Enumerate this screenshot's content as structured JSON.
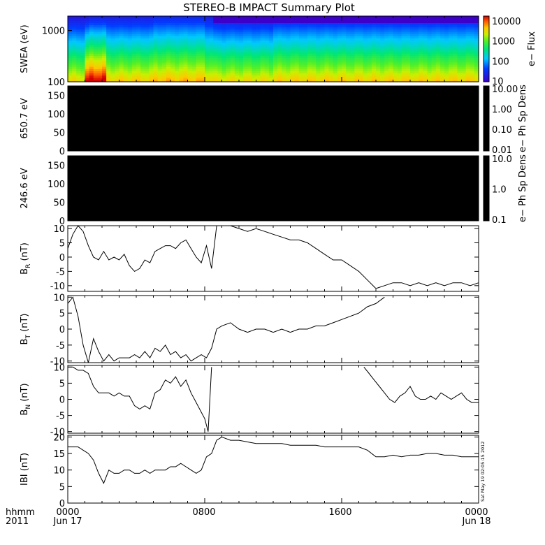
{
  "title": "STEREO-B IMPACT Summary Plot",
  "footer": {
    "row1_label": "hhmm",
    "row2_label": "2011",
    "ticks": [
      {
        "hours": 0,
        "hhmm": "0000",
        "date": "Jun 17"
      },
      {
        "hours": 8,
        "hhmm": "0800",
        "date": ""
      },
      {
        "hours": 16,
        "hhmm": "1600",
        "date": ""
      },
      {
        "hours": 24,
        "hhmm": "0000",
        "date": "Jun 18"
      }
    ]
  },
  "timestamp": "Sat May 19 02:05:15 2012",
  "colors": {
    "line": "#000000",
    "frame": "#000000",
    "black_panel": "#000000"
  },
  "chart_data": [
    {
      "type": "heatmap",
      "ylabel": "SWEA (eV)",
      "yscale": "log",
      "ylim": [
        100,
        1900
      ],
      "yticks": [
        {
          "v": 100,
          "label": "100"
        },
        {
          "v": 1000,
          "label": "1000"
        }
      ],
      "x": [
        0,
        0.5,
        1,
        1.5,
        2,
        2.5,
        3,
        3.5,
        4,
        5,
        6,
        7,
        8,
        8.5,
        9,
        10,
        11,
        12,
        13,
        14,
        15,
        16,
        17,
        18,
        19,
        20,
        21,
        22,
        23,
        24
      ],
      "y_energies": [
        100,
        126,
        159,
        200,
        251,
        316,
        398,
        501,
        631,
        794,
        1000,
        1259,
        1585,
        1900
      ],
      "profile_description": "flux peaks near 100 eV around 01:30-02:15, decreasing with energy",
      "colorbar": {
        "label": "e− Flux",
        "scale": "log",
        "range": [
          10,
          10000
        ],
        "ticks": [
          "10000",
          "1000",
          "100",
          "10"
        ]
      }
    },
    {
      "type": "line",
      "ylabel": "650.7 eV",
      "ylim": [
        0,
        175
      ],
      "yticks": [
        "0",
        "50",
        "100",
        "150"
      ],
      "values": [],
      "panel": "all black (no data)",
      "colorbar": {
        "label": "e− Ph Sp Dens",
        "scale": "log",
        "ticks": [
          "10.00",
          "1.00",
          "0.10",
          "0.01"
        ]
      }
    },
    {
      "type": "line",
      "ylabel": "246.6 eV",
      "ylim": [
        0,
        175
      ],
      "yticks": [
        "0",
        "50",
        "100",
        "150"
      ],
      "values": [],
      "panel": "all black (no data)",
      "colorbar": {
        "label": "e− Ph Sp Dens",
        "scale": "log",
        "ticks": [
          "10.0",
          "1.0",
          "0.1"
        ]
      }
    },
    {
      "type": "line",
      "ylabel_main": "B",
      "ylabel_sub": "R",
      "ylabel_unit": " (nT)",
      "ylim": [
        -12,
        11
      ],
      "yticks": [
        "10",
        "5",
        "0",
        "-5",
        "-10"
      ],
      "xlim": [
        0,
        24
      ],
      "x": [
        0.0,
        0.3,
        0.6,
        0.9,
        1.2,
        1.5,
        1.8,
        2.1,
        2.4,
        2.7,
        3.0,
        3.3,
        3.6,
        3.9,
        4.2,
        4.5,
        4.8,
        5.1,
        5.4,
        5.7,
        6.0,
        6.3,
        6.6,
        6.9,
        7.2,
        7.5,
        7.8,
        8.1,
        8.4,
        8.7,
        9.0,
        9.5,
        10.0,
        10.5,
        11.0,
        11.5,
        12.0,
        12.5,
        13.0,
        13.5,
        14.0,
        14.5,
        15.0,
        15.5,
        16.0,
        16.5,
        17.0,
        17.5,
        18.0,
        18.5,
        19.0,
        19.5,
        20.0,
        20.5,
        21.0,
        21.5,
        22.0,
        22.5,
        23.0,
        23.5,
        24.0
      ],
      "y": [
        3,
        8,
        11,
        9,
        4,
        0,
        -1,
        2,
        -1,
        0,
        -1,
        1,
        -3,
        -5,
        -4,
        -1,
        -2,
        2,
        3,
        4,
        4,
        3,
        5,
        6,
        3,
        0,
        -2,
        4,
        -4,
        12,
        11,
        11,
        10,
        9,
        10,
        9,
        8,
        7,
        6,
        6,
        5,
        3,
        1,
        -1,
        -1,
        -3,
        -5,
        -8,
        -11,
        -10,
        -9,
        -9,
        -10,
        -9,
        -10,
        -9,
        -10,
        -9,
        -9,
        -10,
        -9
      ]
    },
    {
      "type": "line",
      "ylabel_main": "B",
      "ylabel_sub": "T",
      "ylabel_unit": " (nT)",
      "ylim": [
        -10.5,
        10.5
      ],
      "yticks": [
        "10",
        "5",
        "0",
        "-5",
        "-10"
      ],
      "xlim": [
        0,
        24
      ],
      "x": [
        0.0,
        0.3,
        0.6,
        0.9,
        1.2,
        1.5,
        1.8,
        2.1,
        2.4,
        2.7,
        3.0,
        3.3,
        3.6,
        3.9,
        4.2,
        4.5,
        4.8,
        5.1,
        5.4,
        5.7,
        6.0,
        6.3,
        6.6,
        6.9,
        7.2,
        7.5,
        7.8,
        8.1,
        8.4,
        8.7,
        9.0,
        9.5,
        10.0,
        10.5,
        11.0,
        11.5,
        12.0,
        12.5,
        13.0,
        13.5,
        14.0,
        14.5,
        15.0,
        15.5,
        16.0,
        16.5,
        17.0,
        17.5,
        18.0,
        18.5
      ],
      "y": [
        8,
        10,
        4,
        -5,
        -11,
        -3,
        -7,
        -10,
        -8,
        -10,
        -9,
        -9,
        -9,
        -8,
        -9,
        -7,
        -9,
        -6,
        -7,
        -5,
        -8,
        -7,
        -9,
        -8,
        -10,
        -9,
        -8,
        -9,
        -6,
        0,
        1,
        2,
        0,
        -1,
        0,
        0,
        -1,
        0,
        -1,
        0,
        0,
        1,
        1,
        2,
        3,
        4,
        5,
        7,
        8,
        10
      ]
    },
    {
      "type": "line",
      "ylabel_main": "B",
      "ylabel_sub": "N",
      "ylabel_unit": " (nT)",
      "ylim": [
        -10.5,
        10.5
      ],
      "yticks": [
        "10",
        "5",
        "0",
        "-5",
        "-10"
      ],
      "xlim": [
        0,
        24
      ],
      "segments": [
        {
          "x": [
            0.0,
            0.3,
            0.6,
            0.9,
            1.2,
            1.5,
            1.8,
            2.1,
            2.4,
            2.7,
            3.0,
            3.3,
            3.6,
            3.9,
            4.2,
            4.5,
            4.8,
            5.1,
            5.4,
            5.7,
            6.0,
            6.3,
            6.6,
            6.9,
            7.2,
            7.5,
            7.8,
            8.0,
            8.2,
            8.4
          ],
          "y": [
            10,
            10,
            9,
            9,
            8,
            4,
            2,
            2,
            2,
            1,
            2,
            1,
            1,
            -2,
            -3,
            -2,
            -3,
            2,
            3,
            6,
            5,
            7,
            4,
            6,
            2,
            -1,
            -4,
            -6,
            -10,
            10
          ]
        },
        {
          "x": [
            17.3,
            17.6,
            17.9,
            18.2,
            18.5,
            18.8,
            19.1,
            19.4,
            19.7,
            20.0,
            20.3,
            20.6,
            20.9,
            21.2,
            21.5,
            21.8,
            22.1,
            22.4,
            22.7,
            23.0,
            23.3,
            23.6,
            24.0
          ],
          "y": [
            10,
            8,
            6,
            4,
            2,
            0,
            -1,
            1,
            2,
            4,
            1,
            0,
            0,
            1,
            0,
            2,
            1,
            0,
            1,
            2,
            0,
            -1,
            -1
          ]
        }
      ]
    },
    {
      "type": "line",
      "ylabel": "|B| (nT)",
      "ylabel_display": "IBI (nT)",
      "ylim": [
        0,
        20.5
      ],
      "yticks": [
        "20",
        "15",
        "10",
        "5",
        "0"
      ],
      "xlim": [
        0,
        24
      ],
      "x": [
        0.0,
        0.3,
        0.6,
        0.9,
        1.2,
        1.5,
        1.8,
        2.1,
        2.4,
        2.7,
        3.0,
        3.3,
        3.6,
        3.9,
        4.2,
        4.5,
        4.8,
        5.1,
        5.4,
        5.7,
        6.0,
        6.3,
        6.6,
        6.9,
        7.2,
        7.5,
        7.8,
        8.1,
        8.4,
        8.7,
        9.0,
        9.5,
        10.0,
        10.5,
        11.0,
        11.5,
        12.0,
        12.5,
        13.0,
        13.5,
        14.0,
        14.5,
        15.0,
        15.5,
        16.0,
        16.5,
        17.0,
        17.5,
        18.0,
        18.5,
        19.0,
        19.5,
        20.0,
        20.5,
        21.0,
        21.5,
        22.0,
        22.5,
        23.0,
        23.5,
        24.0
      ],
      "y": [
        17,
        17,
        17,
        16,
        15,
        13,
        9,
        6,
        10,
        9,
        9,
        10,
        10,
        9,
        9,
        10,
        9,
        10,
        10,
        10,
        11,
        11,
        12,
        11,
        10,
        9,
        10,
        14,
        15,
        19,
        20,
        19,
        19,
        18.5,
        18,
        18,
        18,
        18,
        17.5,
        17.5,
        17.5,
        17.5,
        17,
        17,
        17,
        17,
        17,
        16,
        14,
        14,
        14.5,
        14,
        14.5,
        14.5,
        15,
        15,
        14.5,
        14.5,
        14,
        14,
        14
      ]
    }
  ]
}
